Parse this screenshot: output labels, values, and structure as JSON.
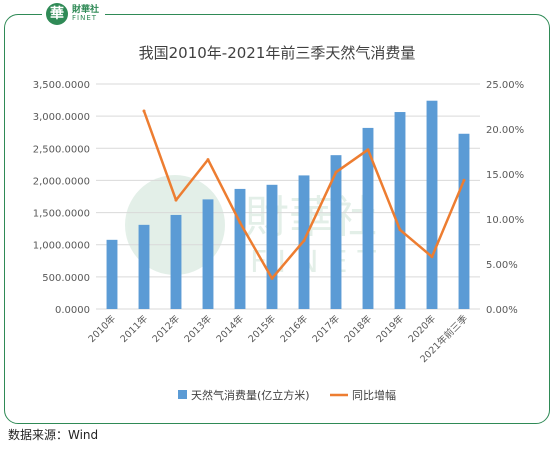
{
  "brand": {
    "logo_glyph": "華",
    "name_cn": "財華社",
    "name_en": "FINET",
    "watermark_cn": "財華社",
    "watermark_en": "FINET"
  },
  "source_label": "数据来源：Wind",
  "colors": {
    "bar": "#5b9bd5",
    "line": "#ed7d31",
    "border": "#2f8a56",
    "grid": "#d9d9d9"
  },
  "chart_data": {
    "type": "bar",
    "title": "我国2010年-2021年前三季天然气消费量",
    "categories": [
      "2010年",
      "2011年",
      "2012年",
      "2013年",
      "2014年",
      "2015年",
      "2016年",
      "2017年",
      "2018年",
      "2019年",
      "2020年",
      "2021年前三季"
    ],
    "y_left": {
      "min": 0,
      "max": 3500,
      "ticks": [
        0,
        500,
        1000,
        1500,
        2000,
        2500,
        3000,
        3500
      ],
      "tick_labels": [
        "0.0000",
        "500.0000",
        "1,000.0000",
        "1,500.0000",
        "2,000.0000",
        "2,500.0000",
        "3,000.0000",
        "3,500.0000"
      ]
    },
    "y_right": {
      "min": 0,
      "max": 25,
      "ticks": [
        0,
        5,
        10,
        15,
        20,
        25
      ],
      "tick_labels": [
        "0.00%",
        "5.00%",
        "10.00%",
        "15.00%",
        "20.00%",
        "25.00%"
      ]
    },
    "series": [
      {
        "name": "天然气消费量(亿立方米)",
        "type": "bar",
        "axis": "left",
        "values": [
          1076,
          1309,
          1463,
          1705,
          1868,
          1932,
          2078,
          2393,
          2817,
          3064,
          3240,
          2726
        ]
      },
      {
        "name": "同比增幅",
        "type": "line",
        "axis": "right",
        "values": [
          null,
          22.0,
          12.1,
          16.6,
          9.6,
          3.4,
          7.6,
          15.2,
          17.7,
          8.8,
          5.8,
          14.3
        ]
      }
    ],
    "legend": "bottom",
    "grid": true
  }
}
